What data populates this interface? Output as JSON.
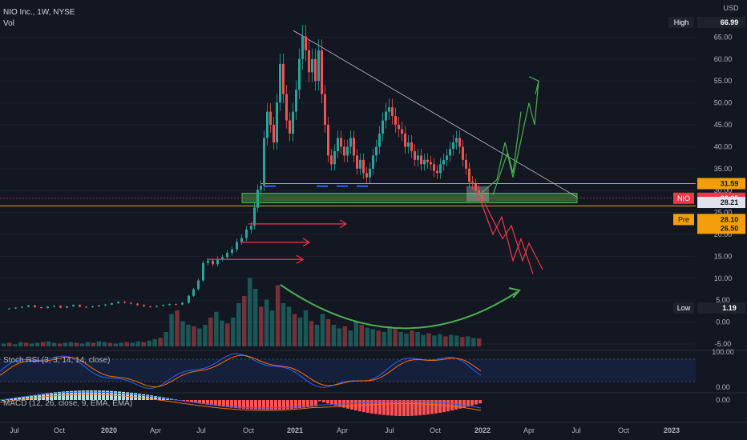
{
  "header": {
    "symbol": "NIO Inc., 1W, NYSE",
    "volume_label": "Vol"
  },
  "currency": "USD",
  "chart_data": {
    "type": "candlestick",
    "title": "NIO Inc., 1W, NYSE",
    "y_ticks": [
      "65.00",
      "60.00",
      "55.00",
      "50.00",
      "45.00",
      "40.00",
      "35.00",
      "30.00",
      "25.00",
      "20.00",
      "15.00",
      "10.00",
      "5.00",
      "0.00",
      "-5.00"
    ],
    "x_ticks": [
      "Jul",
      "Oct",
      "2020",
      "Apr",
      "Jul",
      "Oct",
      "2021",
      "Apr",
      "Jul",
      "Oct",
      "2022",
      "Apr",
      "Jul",
      "Oct",
      "2023"
    ],
    "ylim": [
      -5,
      68
    ],
    "price_labels": [
      {
        "tag": "High",
        "value": "66.99",
        "color": "#1e222d",
        "text_color": "#ffffff"
      },
      {
        "tag": "",
        "value": "31.59",
        "color": "#f59e0b",
        "text_color": "#131722"
      },
      {
        "tag": "NIO",
        "value": "28.25",
        "color": "#f23645",
        "text_color": "#ffffff"
      },
      {
        "tag": "",
        "value": "28.21",
        "color": "#e0e3eb",
        "text_color": "#131722"
      },
      {
        "tag": "Pre",
        "value": "28.10",
        "color": "#f59e0b",
        "text_color": "#131722"
      },
      {
        "tag": "",
        "value": "26.50",
        "color": "#f59e0b",
        "text_color": "#131722"
      },
      {
        "tag": "Low",
        "value": "1.19",
        "color": "#1e222d",
        "text_color": "#ffffff"
      }
    ],
    "price_path": [
      [
        0,
        3
      ],
      [
        8,
        3.1
      ],
      [
        16,
        3.3
      ],
      [
        24,
        3.5
      ],
      [
        32,
        3.8
      ],
      [
        40,
        3.4
      ],
      [
        48,
        3.2
      ],
      [
        56,
        3.5
      ],
      [
        64,
        3.7
      ],
      [
        72,
        3.3
      ],
      [
        80,
        3.6
      ],
      [
        88,
        3.9
      ],
      [
        96,
        3.5
      ],
      [
        104,
        3.4
      ],
      [
        112,
        3.6
      ],
      [
        120,
        3.8
      ],
      [
        128,
        4.0
      ],
      [
        136,
        4.3
      ],
      [
        144,
        4.6
      ],
      [
        152,
        4.4
      ],
      [
        160,
        4.2
      ],
      [
        168,
        3.9
      ],
      [
        176,
        3.6
      ],
      [
        184,
        3.5
      ],
      [
        192,
        3.7
      ],
      [
        200,
        3.9
      ],
      [
        208,
        4.1
      ],
      [
        216,
        4.0
      ],
      [
        224,
        4.4
      ],
      [
        232,
        6.0
      ],
      [
        238,
        7.5
      ],
      [
        244,
        9.5
      ],
      [
        250,
        13.5
      ],
      [
        256,
        14.0
      ],
      [
        262,
        13.2
      ],
      [
        268,
        14.4
      ],
      [
        274,
        14.8
      ],
      [
        280,
        15.8
      ],
      [
        286,
        16.6
      ],
      [
        292,
        18.3
      ],
      [
        298,
        19.2
      ],
      [
        304,
        21.1
      ],
      [
        310,
        22.0
      ],
      [
        314,
        26.1
      ],
      [
        318,
        30.2
      ],
      [
        322,
        31.1
      ],
      [
        326,
        42.0
      ],
      [
        330,
        48.0
      ],
      [
        334,
        45.0
      ],
      [
        338,
        41.0
      ],
      [
        342,
        50.1
      ],
      [
        346,
        58.9
      ],
      [
        350,
        52.0
      ],
      [
        354,
        46.0
      ],
      [
        358,
        43.0
      ],
      [
        362,
        48.0
      ],
      [
        366,
        53.0
      ],
      [
        370,
        60.0
      ],
      [
        374,
        65.2
      ],
      [
        378,
        62.0
      ],
      [
        382,
        57.0
      ],
      [
        386,
        60.0
      ],
      [
        390,
        55.0
      ],
      [
        394,
        62.0
      ],
      [
        398,
        52.0
      ],
      [
        402,
        45.0
      ],
      [
        406,
        38.0
      ],
      [
        410,
        36.0
      ],
      [
        414,
        39.0
      ],
      [
        418,
        42.0
      ],
      [
        422,
        40.0
      ],
      [
        426,
        38.0
      ],
      [
        430,
        40.0
      ],
      [
        434,
        42.0
      ],
      [
        438,
        38.0
      ],
      [
        442,
        35.0
      ],
      [
        446,
        37.0
      ],
      [
        450,
        34.0
      ],
      [
        454,
        33.0
      ],
      [
        458,
        35.0
      ],
      [
        462,
        38.0
      ],
      [
        466,
        40.0
      ],
      [
        470,
        43.0
      ],
      [
        474,
        46.0
      ],
      [
        478,
        48.0
      ],
      [
        482,
        49.0
      ],
      [
        486,
        47.0
      ],
      [
        490,
        45.0
      ],
      [
        494,
        44.0
      ],
      [
        498,
        43.0
      ],
      [
        502,
        40.0
      ],
      [
        506,
        41.0
      ],
      [
        510,
        39.0
      ],
      [
        514,
        37.0
      ],
      [
        518,
        38.0
      ],
      [
        522,
        36.0
      ],
      [
        526,
        37.0
      ],
      [
        530,
        36.5
      ],
      [
        534,
        36.0
      ],
      [
        538,
        34.5
      ],
      [
        542,
        34.0
      ],
      [
        546,
        36.0
      ],
      [
        550,
        37.0
      ],
      [
        554,
        38.0
      ],
      [
        558,
        39.5
      ],
      [
        562,
        41.0
      ],
      [
        566,
        42.0
      ],
      [
        570,
        40.0
      ],
      [
        574,
        37.0
      ],
      [
        578,
        35.0
      ],
      [
        582,
        32.0
      ],
      [
        586,
        31.5
      ],
      [
        590,
        30.0
      ],
      [
        594,
        29.0
      ],
      [
        598,
        28.2
      ]
    ],
    "volume_heights": [
      0.04,
      0.05,
      0.03,
      0.06,
      0.05,
      0.04,
      0.05,
      0.06,
      0.07,
      0.05,
      0.04,
      0.05,
      0.06,
      0.05,
      0.04,
      0.06,
      0.05,
      0.07,
      0.06,
      0.05,
      0.04,
      0.05,
      0.06,
      0.05,
      0.07,
      0.06,
      0.08,
      0.1,
      0.12,
      0.2,
      0.45,
      0.5,
      0.35,
      0.3,
      0.28,
      0.25,
      0.3,
      0.4,
      0.48,
      0.36,
      0.32,
      0.4,
      0.6,
      0.7,
      0.95,
      0.8,
      0.55,
      0.65,
      0.5,
      0.85,
      0.6,
      0.55,
      0.45,
      0.4,
      0.5,
      0.35,
      0.3,
      0.45,
      0.38,
      0.3,
      0.25,
      0.28,
      0.22,
      0.35,
      0.3,
      0.26,
      0.24,
      0.22,
      0.2,
      0.28,
      0.24,
      0.2,
      0.18,
      0.22,
      0.2,
      0.16,
      0.18,
      0.15,
      0.17,
      0.14,
      0.16,
      0.15,
      0.13,
      0.14,
      0.12,
      0.11
    ],
    "rsi": {
      "label": "Stoch RSI (3, 3, 14, 14, close)",
      "ticks": [
        "100.00",
        "0.00"
      ]
    },
    "macd": {
      "label": "MACD (12, 26, close, 9, EMA, EMA)",
      "ticks": [
        "0.00"
      ]
    },
    "annotations": {
      "resistance_lines": [
        "31.59",
        "26.50"
      ],
      "support_zone": [
        "27.2",
        "29.4"
      ]
    }
  }
}
